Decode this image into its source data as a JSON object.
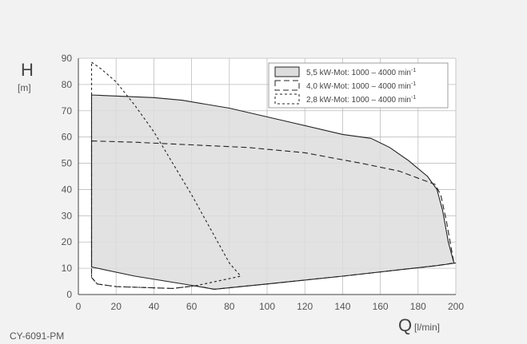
{
  "chart_data": {
    "type": "area",
    "x": {
      "label_symbol": "Q",
      "unit": "[l/min]",
      "range": [
        0,
        200
      ],
      "ticks": [
        0,
        20,
        40,
        60,
        80,
        100,
        120,
        140,
        160,
        180,
        200
      ]
    },
    "y": {
      "label_symbol": "H",
      "unit": "[m]",
      "range": [
        0,
        90
      ],
      "ticks": [
        0,
        10,
        20,
        30,
        40,
        50,
        60,
        70,
        80,
        90
      ]
    },
    "grid": true,
    "legend_position": "top-right",
    "series": [
      {
        "name": "5,5 kW-Mot: 1000 – 4000 min",
        "superscript": "-1",
        "style": "solid",
        "filled": true,
        "points": [
          [
            7,
            76
          ],
          [
            40,
            75
          ],
          [
            55,
            74
          ],
          [
            80,
            71
          ],
          [
            110,
            66
          ],
          [
            140,
            61
          ],
          [
            155,
            59.5
          ],
          [
            165,
            56
          ],
          [
            175,
            51
          ],
          [
            185,
            45
          ],
          [
            190,
            40
          ],
          [
            193,
            32
          ],
          [
            196,
            20
          ],
          [
            199,
            12
          ],
          [
            200,
            12
          ],
          [
            190,
            11
          ],
          [
            140,
            7
          ],
          [
            100,
            4
          ],
          [
            72,
            2
          ],
          [
            60,
            3.5
          ],
          [
            30,
            7
          ],
          [
            7,
            10.5
          ],
          [
            7,
            76
          ]
        ]
      },
      {
        "name": "4,0 kW-Mot: 1000 – 4000 min",
        "superscript": "-1",
        "style": "dashed",
        "filled": false,
        "points": [
          [
            7,
            58.5
          ],
          [
            30,
            58
          ],
          [
            60,
            57
          ],
          [
            90,
            56
          ],
          [
            120,
            54
          ],
          [
            150,
            50
          ],
          [
            170,
            47
          ],
          [
            185,
            43
          ],
          [
            189,
            42
          ],
          [
            192,
            38
          ],
          [
            195,
            28
          ],
          [
            199,
            12
          ],
          [
            190,
            11
          ],
          [
            140,
            7
          ],
          [
            100,
            4
          ],
          [
            72,
            2
          ],
          [
            62,
            3.3
          ],
          [
            50,
            2.3
          ],
          [
            20,
            3
          ],
          [
            10,
            4
          ],
          [
            7,
            6.5
          ],
          [
            7,
            58.5
          ]
        ]
      },
      {
        "name": "2,8 kW-Mot: 1000 – 4000 min",
        "superscript": "-1",
        "style": "dotted",
        "filled": false,
        "points": [
          [
            7,
            88.5
          ],
          [
            12,
            86
          ],
          [
            20,
            81
          ],
          [
            30,
            72
          ],
          [
            40,
            62
          ],
          [
            50,
            50
          ],
          [
            60,
            38
          ],
          [
            70,
            25
          ],
          [
            80,
            12
          ],
          [
            86,
            7
          ],
          [
            62,
            3.3
          ],
          [
            50,
            2.3
          ],
          [
            20,
            3
          ],
          [
            10,
            4
          ],
          [
            7,
            6.5
          ],
          [
            7,
            88.5
          ]
        ]
      }
    ]
  },
  "footer": {
    "code": "CY-6091-PM"
  },
  "colors": {
    "background": "#f2f2f2",
    "plot_background": "#ffffff",
    "grid": "#bdbdbd",
    "fill": "#dddddd",
    "line": "#222222",
    "axis_text": "#555555"
  }
}
